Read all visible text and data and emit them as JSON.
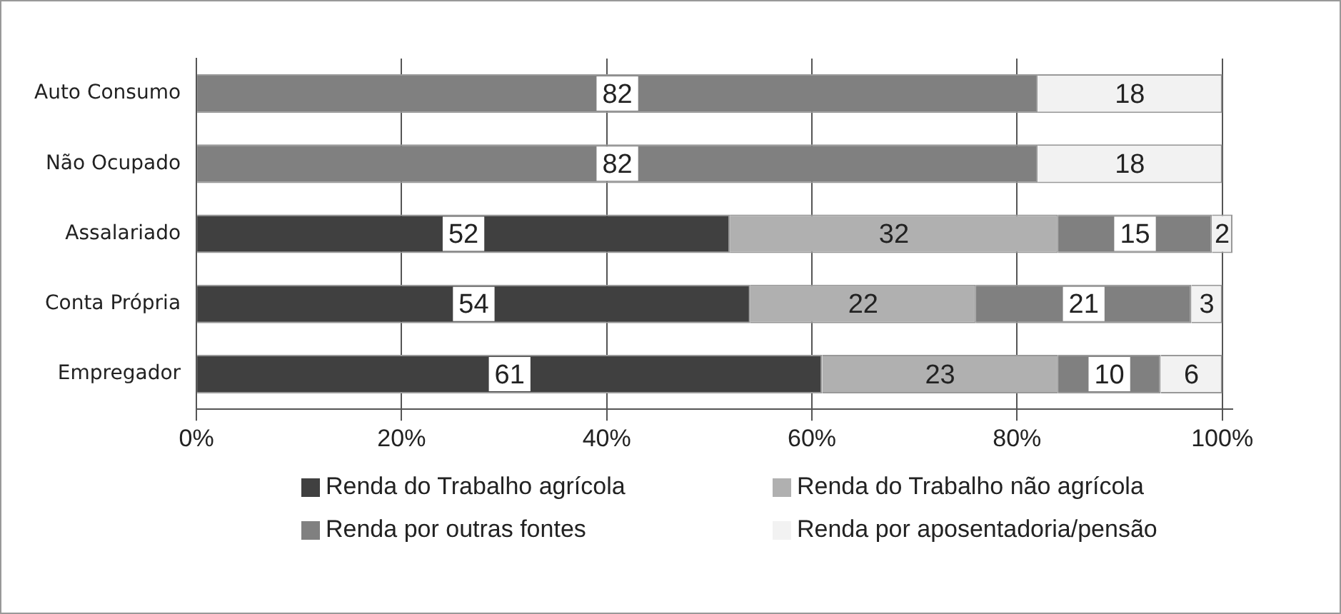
{
  "chart_data": {
    "type": "bar",
    "orientation": "horizontal",
    "stacked": true,
    "categories": [
      "Auto Consumo",
      "Não Ocupado",
      "Assalariado",
      "Conta Própria",
      "Empregador"
    ],
    "series": [
      {
        "name": "Renda do Trabalho agrícola",
        "color": "#404040",
        "values": [
          null,
          null,
          52,
          54,
          61
        ]
      },
      {
        "name": "Renda do Trabalho não agrícola",
        "color": "#b0b0b0",
        "values": [
          null,
          null,
          32,
          22,
          23
        ]
      },
      {
        "name": "Renda por outras fontes",
        "color": "#808080",
        "values": [
          82,
          82,
          15,
          21,
          10
        ]
      },
      {
        "name": "Renda por aposentadoria/pensão",
        "color": "#f2f2f2",
        "values": [
          18,
          18,
          2,
          3,
          6
        ]
      }
    ],
    "xlim": [
      0,
      101
    ],
    "xticks": [
      {
        "value": 0,
        "label": "0%"
      },
      {
        "value": 20,
        "label": "20%"
      },
      {
        "value": 40,
        "label": "40%"
      },
      {
        "value": 60,
        "label": "60%"
      },
      {
        "value": 80,
        "label": "80%"
      },
      {
        "value": 100,
        "label": "100%"
      }
    ],
    "grid": "x",
    "legend": "bottom",
    "data_labels": true
  }
}
